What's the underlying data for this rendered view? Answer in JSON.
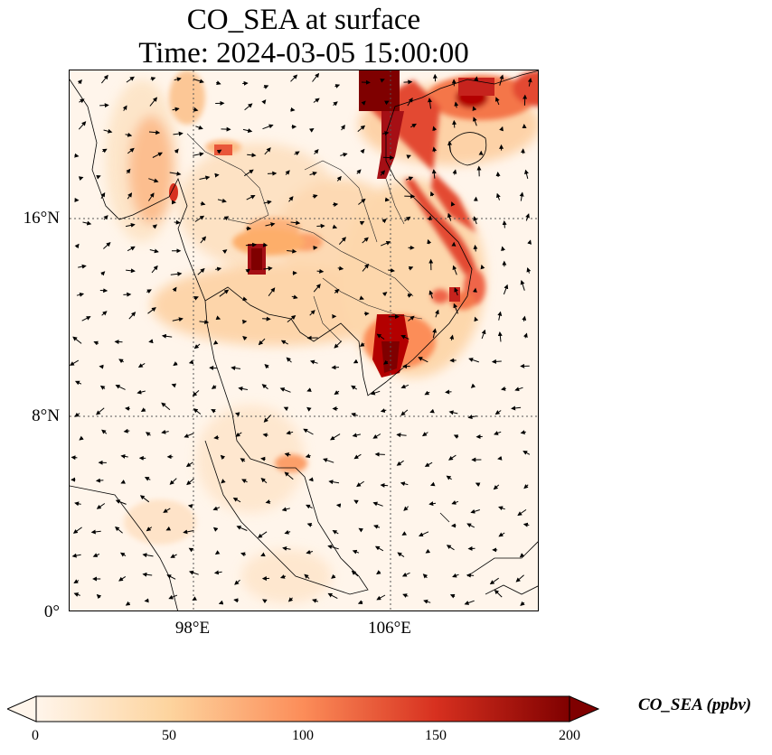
{
  "title_line1": "CO_SEA at surface",
  "title_line2": "Time: 2024-03-05 15:00:00",
  "lat_labels": [
    "16°N",
    "8°N",
    "0°"
  ],
  "lon_labels": [
    "98°E",
    "106°E"
  ],
  "colorbar": {
    "label": "CO_SEA (ppbv)",
    "ticks": [
      "0",
      "50",
      "100",
      "150",
      "200"
    ],
    "range": [
      0,
      200
    ],
    "extend": "both",
    "colormap": "OrRd",
    "colors": [
      "#fff5eb",
      "#fdd49e",
      "#fc8d59",
      "#d7301f",
      "#7f0000"
    ]
  },
  "map": {
    "projection": "lat-lon",
    "lon_range": [
      93,
      112
    ],
    "lat_range": [
      0,
      22
    ],
    "gridlines": "dotted",
    "vector_field": "wind arrows",
    "colors": {
      "land_outline": "#000000",
      "grid": "#555555"
    }
  }
}
